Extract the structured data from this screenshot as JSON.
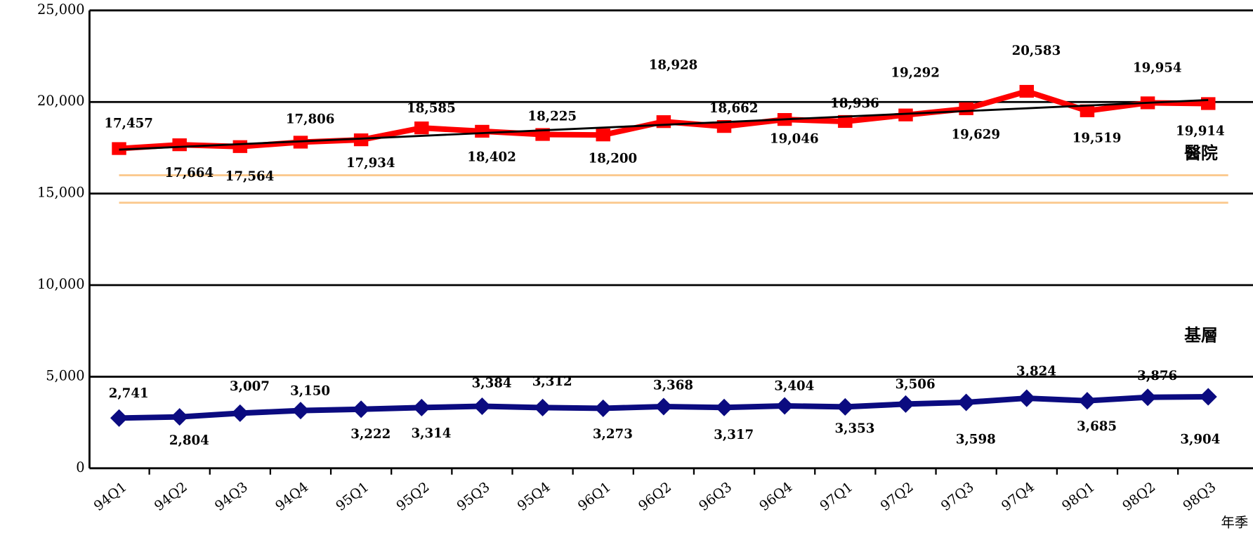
{
  "chart_data": {
    "type": "line",
    "categories": [
      "94Q1",
      "94Q2",
      "94Q3",
      "94Q4",
      "95Q1",
      "95Q2",
      "95Q3",
      "95Q4",
      "96Q1",
      "96Q2",
      "96Q3",
      "96Q4",
      "97Q1",
      "97Q2",
      "97Q3",
      "97Q4",
      "98Q1",
      "98Q2",
      "98Q3"
    ],
    "series": [
      {
        "name": "醫院",
        "color": "#ff0000",
        "marker": "square",
        "trendline": true,
        "values": [
          17457,
          17664,
          17564,
          17806,
          17934,
          18585,
          18402,
          18225,
          18200,
          18928,
          18662,
          19046,
          18936,
          19292,
          19629,
          20583,
          19519,
          19954,
          19914
        ],
        "value_labels": [
          "17,457",
          "17,664",
          "17,564",
          "17,806",
          "17,934",
          "18,585",
          "18,402",
          "18,225",
          "18,200",
          "18,928",
          "18,662",
          "19,046",
          "18,936",
          "19,292",
          "19,629",
          "20,583",
          "19,519",
          "19,954",
          "19,914"
        ]
      },
      {
        "name": "基層",
        "color": "#0b0b80",
        "marker": "diamond",
        "values": [
          2741,
          2804,
          3007,
          3150,
          3222,
          3314,
          3384,
          3312,
          3273,
          3368,
          3317,
          3404,
          3353,
          3506,
          3598,
          3824,
          3685,
          3876,
          3904
        ],
        "value_labels": [
          "2,741",
          "2,804",
          "3,007",
          "3,150",
          "3,222",
          "3,314",
          "3,384",
          "3,312",
          "3,273",
          "3,368",
          "3,317",
          "3,404",
          "3,353",
          "3,506",
          "3,598",
          "3,824",
          "3,685",
          "3,876",
          "3,904"
        ]
      }
    ],
    "reference_lines": [
      16000,
      14500
    ],
    "x_label": "年季",
    "ylim": [
      0,
      25000
    ],
    "yticks": [
      0,
      {
        "value": 5000,
        "label": "5,000"
      },
      {
        "value": 10000,
        "label": "10,000"
      },
      {
        "value": 15000,
        "label": "15,000"
      },
      {
        "value": 20000,
        "label": "20,000"
      },
      {
        "value": 25000,
        "label": "25,000"
      }
    ],
    "grid": true
  }
}
